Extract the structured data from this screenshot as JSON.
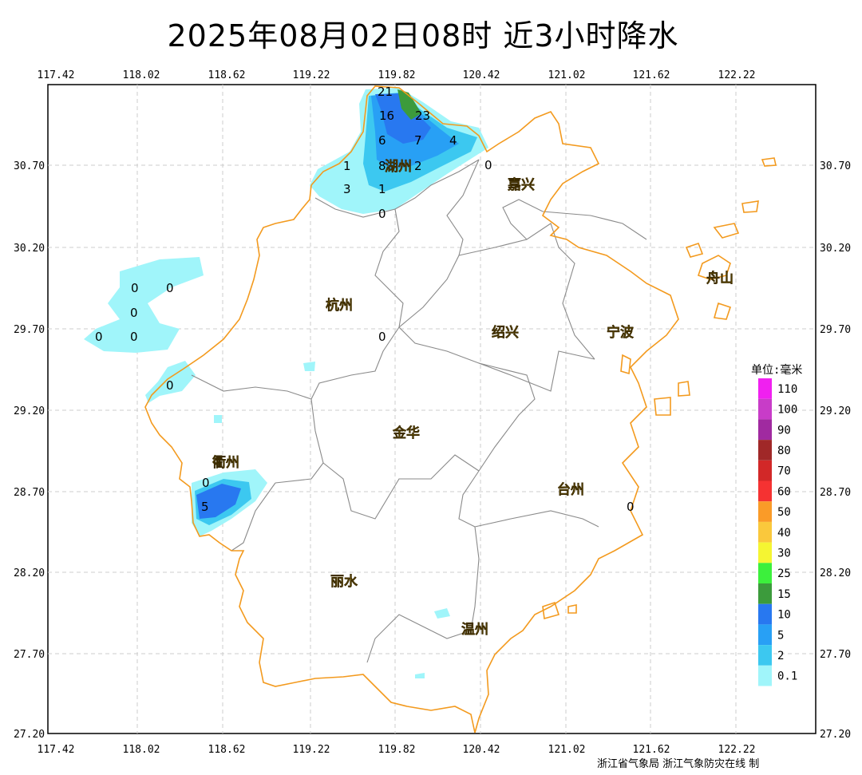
{
  "title": "2025年08月02日08时  近3小时降水",
  "credit": "浙江省气象局  浙江气象防灾在线 制",
  "lon_ticks": [
    "117.42",
    "118.02",
    "118.62",
    "119.22",
    "119.82",
    "120.42",
    "121.02",
    "121.62",
    "122.22"
  ],
  "lat_ticks": [
    "30.70",
    "30.20",
    "29.70",
    "29.20",
    "28.70",
    "28.20",
    "27.70",
    "27.20"
  ],
  "cities": [
    {
      "name": "嘉兴",
      "id": "jiaxing"
    },
    {
      "name": "湖州",
      "id": "huzhou"
    },
    {
      "name": "杭州",
      "id": "hangzhou"
    },
    {
      "name": "绍兴",
      "id": "shaoxing"
    },
    {
      "name": "宁波",
      "id": "ningbo"
    },
    {
      "name": "舟山",
      "id": "zhoushan"
    },
    {
      "name": "金华",
      "id": "jinhua"
    },
    {
      "name": "衢州",
      "id": "quzhou"
    },
    {
      "name": "台州",
      "id": "taizhou"
    },
    {
      "name": "丽水",
      "id": "lishui"
    },
    {
      "name": "温州",
      "id": "wenzhou"
    }
  ],
  "station_values": [
    "21",
    "16",
    "23",
    "6",
    "7",
    "4",
    "1",
    "8",
    "2",
    "0",
    "3",
    "1",
    "0",
    "0",
    "0",
    "0",
    "0",
    "0",
    "0",
    "0",
    "0",
    "5",
    "0"
  ],
  "legend": {
    "title": "单位:毫米",
    "items": [
      {
        "label": "110",
        "color": "#f020f0"
      },
      {
        "label": "100",
        "color": "#c83cc8"
      },
      {
        "label": "90",
        "color": "#a02aa0"
      },
      {
        "label": "80",
        "color": "#a02828"
      },
      {
        "label": "70",
        "color": "#d22828"
      },
      {
        "label": "60",
        "color": "#f53232"
      },
      {
        "label": "50",
        "color": "#fa9b28"
      },
      {
        "label": "40",
        "color": "#fac83c"
      },
      {
        "label": "30",
        "color": "#f5f532"
      },
      {
        "label": "25",
        "color": "#3cf03c"
      },
      {
        "label": "15",
        "color": "#3c9b3c"
      },
      {
        "label": "10",
        "color": "#2878f0"
      },
      {
        "label": "5",
        "color": "#28a0f5"
      },
      {
        "label": "2",
        "color": "#3cc8f0"
      },
      {
        "label": "0.1",
        "color": "#a0f5fa"
      }
    ]
  }
}
